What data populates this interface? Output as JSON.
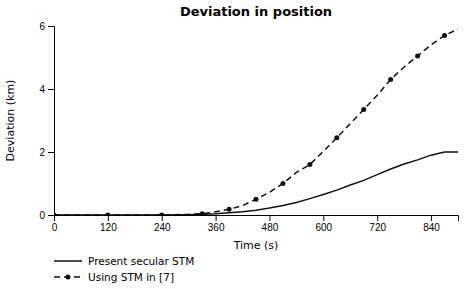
{
  "chart_data": {
    "type": "line",
    "title": "Deviation in position",
    "x_label": "Time (s)",
    "y_label": "Deviation (km)",
    "x": [
      0,
      60,
      120,
      180,
      240,
      300,
      330,
      360,
      390,
      420,
      450,
      480,
      510,
      540,
      570,
      600,
      630,
      660,
      690,
      720,
      750,
      780,
      810,
      840,
      870,
      900
    ],
    "series": [
      {
        "name": "Present secular STM",
        "color": "#111111",
        "line_style": "solid",
        "marker": "none",
        "values": [
          0.0,
          0.0,
          0.0,
          0.0,
          0.002,
          0.01,
          0.02,
          0.04,
          0.07,
          0.1,
          0.15,
          0.22,
          0.3,
          0.4,
          0.52,
          0.65,
          0.79,
          0.95,
          1.1,
          1.28,
          1.46,
          1.62,
          1.75,
          1.9,
          2.0,
          2.0
        ]
      },
      {
        "name": "Using STM in [7]",
        "color": "#111111",
        "line_style": "dashed",
        "marker": "circle",
        "values": [
          0.0,
          0.0,
          0.0,
          0.0,
          0.002,
          0.02,
          0.04,
          0.1,
          0.18,
          0.3,
          0.5,
          0.72,
          1.0,
          1.35,
          1.6,
          2.02,
          2.45,
          2.9,
          3.35,
          3.8,
          4.3,
          4.7,
          5.05,
          5.4,
          5.7,
          5.9
        ]
      }
    ],
    "xlim": [
      0,
      900
    ],
    "ylim": [
      0,
      6
    ],
    "xticks": [
      0,
      120,
      240,
      360,
      480,
      600,
      720,
      840
    ],
    "yticks": [
      0,
      2,
      4,
      6
    ],
    "grid": false,
    "legend": "bottom left"
  }
}
